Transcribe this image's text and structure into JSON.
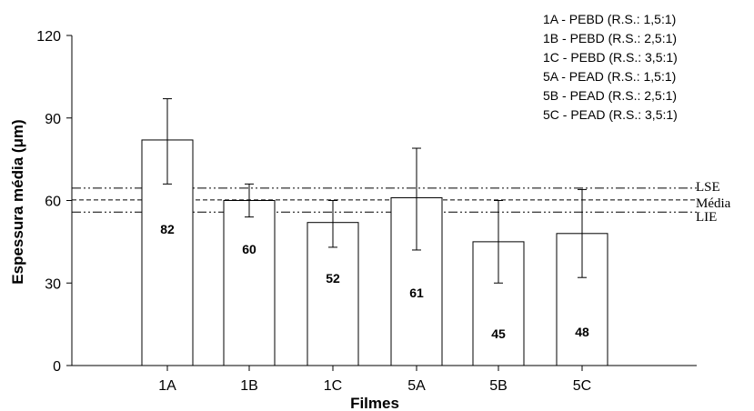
{
  "chart_data": {
    "type": "bar",
    "title": "",
    "xlabel": "Filmes",
    "ylabel": "Espessura média (μm)",
    "ylim": [
      0,
      120
    ],
    "yticks": [
      0,
      30,
      60,
      90,
      120
    ],
    "categories": [
      "1A",
      "1B",
      "1C",
      "5A",
      "5B",
      "5C"
    ],
    "series": [
      {
        "values": [
          82,
          60,
          52,
          61,
          45,
          48
        ],
        "error_low": [
          66,
          54,
          43,
          42,
          30,
          32
        ],
        "error_high": [
          97,
          66,
          60,
          79,
          60,
          64
        ],
        "labels": [
          "82",
          "60",
          "52",
          "61",
          "45",
          "48"
        ]
      }
    ],
    "reference_lines": [
      {
        "label": "LSE",
        "value": 64.5,
        "style": "dash-dot-dot"
      },
      {
        "label": "Média",
        "value": 60.2,
        "style": "dashed"
      },
      {
        "label": "LIE",
        "value": 55.8,
        "style": "dash-dot-dot"
      }
    ],
    "legend": {
      "placement": "top-right",
      "entries": [
        "1A - PEBD (R.S.: 1,5:1)",
        "1B - PEBD (R.S.: 2,5:1)",
        "1C - PEBD (R.S.: 3,5:1)",
        "5A - PEAD (R.S.: 1,5:1)",
        "5B - PEAD (R.S.: 2,5:1)",
        "5C - PEAD (R.S.: 3,5:1)"
      ]
    },
    "grid": false,
    "colors": {
      "bar_fill": "#ffffff",
      "bar_stroke": "#000000",
      "line": "#000000"
    }
  }
}
